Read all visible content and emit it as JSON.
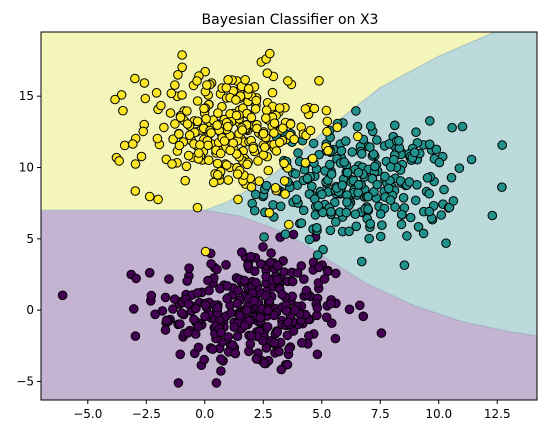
{
  "chart_data": {
    "type": "scatter",
    "title": "Bayesian Classifier on X3",
    "xlabel": "",
    "ylabel": "",
    "xlim": [
      -7.0,
      14.2
    ],
    "ylim": [
      -6.3,
      19.5
    ],
    "x_ticks": [
      -5.0,
      -2.5,
      0.0,
      2.5,
      5.0,
      7.5,
      10.0,
      12.5
    ],
    "x_tick_labels": [
      "−5.0",
      "−2.5",
      "0.0",
      "2.5",
      "5.0",
      "7.5",
      "10.0",
      "12.5"
    ],
    "y_ticks": [
      -5,
      0,
      5,
      10,
      15
    ],
    "y_tick_labels": [
      "−5",
      "0",
      "5",
      "10",
      "15"
    ],
    "grid": false,
    "legend": "none",
    "decision_regions": [
      {
        "class": 0,
        "color": "#c5b3d2",
        "polygon": [
          [
            -7.0,
            -6.3
          ],
          [
            14.2,
            -6.3
          ],
          [
            14.2,
            -1.8
          ],
          [
            13.0,
            -1.5
          ],
          [
            11.0,
            -0.8
          ],
          [
            9.0,
            0.3
          ],
          [
            7.0,
            1.8
          ],
          [
            5.5,
            3.3
          ],
          [
            4.2,
            4.7
          ],
          [
            3.0,
            5.7
          ],
          [
            1.5,
            6.6
          ],
          [
            0.0,
            7.0
          ],
          [
            -7.0,
            7.0
          ]
        ]
      },
      {
        "class": 1,
        "color": "#bcdadb",
        "polygon": [
          [
            0.0,
            7.0
          ],
          [
            1.5,
            6.6
          ],
          [
            3.0,
            5.7
          ],
          [
            4.2,
            4.7
          ],
          [
            5.5,
            3.3
          ],
          [
            7.0,
            1.8
          ],
          [
            9.0,
            0.3
          ],
          [
            11.0,
            -0.8
          ],
          [
            13.0,
            -1.5
          ],
          [
            14.2,
            -1.8
          ],
          [
            14.2,
            19.5
          ],
          [
            12.4,
            19.5
          ],
          [
            10.0,
            17.8
          ],
          [
            7.5,
            15.6
          ],
          [
            5.0,
            12.4
          ],
          [
            3.0,
            9.6
          ],
          [
            1.0,
            7.6
          ]
        ]
      },
      {
        "class": 2,
        "color": "#f3f5b9",
        "polygon": [
          [
            -7.0,
            7.0
          ],
          [
            0.0,
            7.0
          ],
          [
            1.0,
            7.6
          ],
          [
            3.0,
            9.6
          ],
          [
            5.0,
            12.4
          ],
          [
            7.5,
            15.6
          ],
          [
            10.0,
            17.8
          ],
          [
            12.4,
            19.5
          ],
          [
            -7.0,
            19.5
          ]
        ]
      }
    ],
    "series": [
      {
        "class": 0,
        "color": "#440154",
        "center": [
          2.0,
          0.0
        ],
        "spread": [
          2.0,
          2.2
        ],
        "count": 330
      },
      {
        "class": 1,
        "color": "#21918c",
        "center": [
          6.7,
          8.9
        ],
        "spread": [
          2.0,
          2.0
        ],
        "count": 290
      },
      {
        "class": 2,
        "color": "#fde725",
        "center": [
          1.0,
          12.6
        ],
        "spread": [
          1.9,
          2.2
        ],
        "count": 290
      }
    ]
  }
}
